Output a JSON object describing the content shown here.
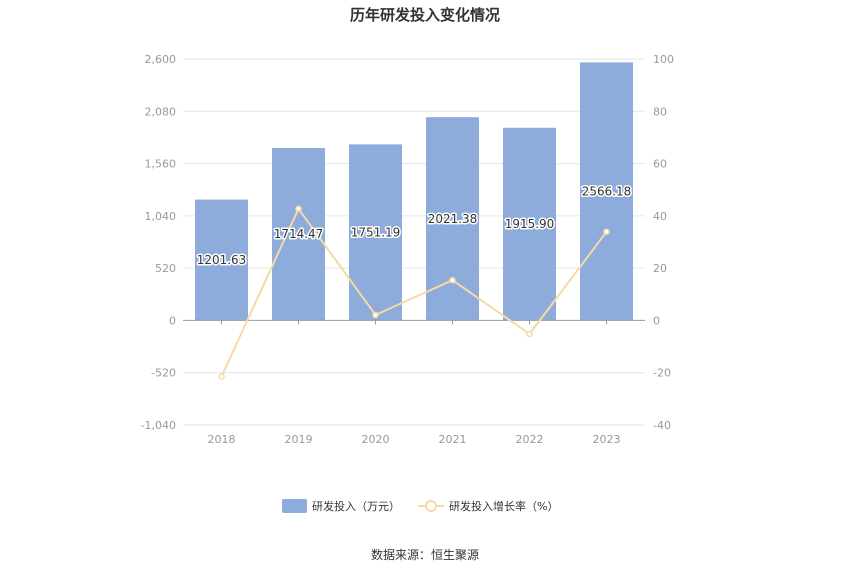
{
  "chart_data": {
    "type": "bar",
    "title": "历年研发投入变化情况",
    "categories": [
      "2018",
      "2019",
      "2020",
      "2021",
      "2022",
      "2023"
    ],
    "series": [
      {
        "name": "研发投入（万元）",
        "type": "bar",
        "axis": "left",
        "color": "#8eacdb",
        "values": [
          1201.63,
          1714.47,
          1751.19,
          2021.38,
          1915.9,
          2566.18
        ],
        "labels": [
          "1201.63",
          "1714.47",
          "1751.19",
          "2021.38",
          "1915.90",
          "2566.18"
        ]
      },
      {
        "name": "研发投入增长率（%）",
        "type": "line",
        "axis": "right",
        "color": "#f7d9a6",
        "values": [
          -21.5,
          42.7,
          2.1,
          15.4,
          -5.2,
          33.9
        ]
      }
    ],
    "y_left": {
      "ylim": [
        -1040,
        2600
      ],
      "ticks": [
        -1040,
        -520,
        0,
        520,
        1040,
        1560,
        2080,
        2600
      ],
      "tick_labels": [
        "-1,040",
        "-520",
        "0",
        "520",
        "1,040",
        "1,560",
        "2,080",
        "2,600"
      ]
    },
    "y_right": {
      "ylim": [
        -40,
        100
      ],
      "ticks": [
        -40,
        -20,
        0,
        20,
        40,
        60,
        80,
        100
      ],
      "tick_labels": [
        "-40",
        "-20",
        "0",
        "20",
        "40",
        "60",
        "80",
        "100"
      ]
    },
    "grid": true,
    "legend_position": "bottom"
  },
  "source_text": "数据来源：恒生聚源"
}
